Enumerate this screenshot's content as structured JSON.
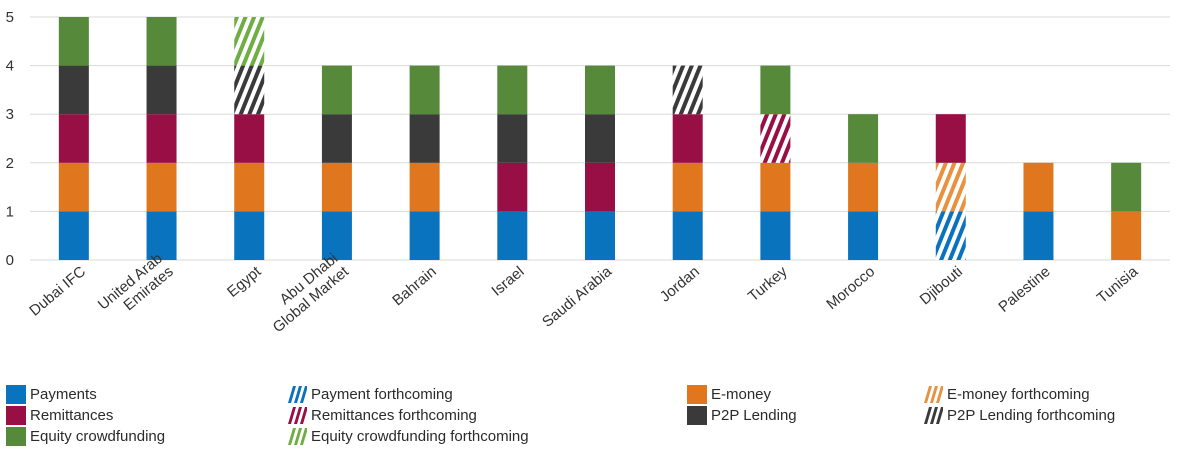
{
  "chart_data": {
    "type": "bar",
    "stacked": true,
    "ylim": [
      0,
      5
    ],
    "yticks": [
      "0",
      "1",
      "2",
      "3",
      "4",
      "5"
    ],
    "grid": true,
    "legend_placement": "bottom",
    "categories": [
      "Dubai IFC",
      "United Arab Emirates",
      "Egypt",
      "Abu Dhabi Global Market",
      "Bahrain",
      "Israel",
      "Saudi Arabia",
      "Jordan",
      "Turkey",
      "Morocco",
      "Djibouti",
      "Palestine",
      "Tunisia"
    ],
    "category_lines": [
      [
        "Dubai IFC"
      ],
      [
        "United Arab",
        "Emirates"
      ],
      [
        "Egypt"
      ],
      [
        "Abu Dhabi",
        "Global Market"
      ],
      [
        "Bahrain"
      ],
      [
        "Israel"
      ],
      [
        "Saudi Arabia"
      ],
      [
        "Jordan"
      ],
      [
        "Turkey"
      ],
      [
        "Morocco"
      ],
      [
        "Djibouti"
      ],
      [
        "Palestine"
      ],
      [
        "Tunisia"
      ]
    ],
    "series": [
      {
        "name": "Payments",
        "color": "#0a73be",
        "pattern": "solid",
        "values": [
          1,
          1,
          1,
          1,
          1,
          1,
          1,
          1,
          1,
          1,
          0,
          1,
          0
        ]
      },
      {
        "name": "Payment forthcoming",
        "color": "#0a73be",
        "pattern": "hatched",
        "values": [
          0,
          0,
          0,
          0,
          0,
          0,
          0,
          0,
          0,
          0,
          1,
          0,
          0
        ]
      },
      {
        "name": "E-money",
        "color": "#e0771f",
        "pattern": "solid",
        "values": [
          1,
          1,
          1,
          1,
          1,
          0,
          0,
          1,
          1,
          1,
          0,
          1,
          1
        ]
      },
      {
        "name": "E-money forthcoming",
        "color": "#e8913f",
        "pattern": "hatched",
        "values": [
          0,
          0,
          0,
          0,
          0,
          0,
          0,
          0,
          0,
          0,
          1,
          0,
          0
        ]
      },
      {
        "name": "Remittances",
        "color": "#980f45",
        "pattern": "solid",
        "values": [
          1,
          1,
          1,
          0,
          0,
          1,
          1,
          1,
          0,
          0,
          1,
          0,
          0
        ]
      },
      {
        "name": "Remittances forthcoming",
        "color": "#980f45",
        "pattern": "hatched",
        "values": [
          0,
          0,
          0,
          0,
          0,
          0,
          0,
          0,
          1,
          0,
          0,
          0,
          0
        ]
      },
      {
        "name": "P2P Lending",
        "color": "#3a3a3a",
        "pattern": "solid",
        "values": [
          1,
          1,
          0,
          1,
          1,
          1,
          1,
          0,
          0,
          0,
          0,
          0,
          0
        ]
      },
      {
        "name": "P2P Lending forthcoming",
        "color": "#3a3a3a",
        "pattern": "hatched",
        "values": [
          0,
          0,
          1,
          0,
          0,
          0,
          0,
          1,
          0,
          0,
          0,
          0,
          0
        ]
      },
      {
        "name": "Equity crowdfunding",
        "color": "#56893a",
        "pattern": "solid",
        "values": [
          1,
          1,
          0,
          1,
          1,
          1,
          1,
          0,
          1,
          1,
          0,
          0,
          1
        ]
      },
      {
        "name": "Equity crowdfunding forthcoming",
        "color": "#6fae44",
        "pattern": "hatched",
        "values": [
          0,
          0,
          1,
          0,
          0,
          0,
          0,
          0,
          0,
          0,
          0,
          0,
          0
        ]
      }
    ]
  },
  "legend": [
    {
      "label": "Payments",
      "color": "#0a73be",
      "pattern": "solid"
    },
    {
      "label": "Payment forthcoming",
      "color": "#0a73be",
      "pattern": "hatched"
    },
    {
      "label": "E-money",
      "color": "#e0771f",
      "pattern": "solid"
    },
    {
      "label": "E-money forthcoming",
      "color": "#e8913f",
      "pattern": "hatched"
    },
    {
      "label": "Remittances",
      "color": "#980f45",
      "pattern": "solid"
    },
    {
      "label": "Remittances forthcoming",
      "color": "#980f45",
      "pattern": "hatched"
    },
    {
      "label": "P2P Lending",
      "color": "#3a3a3a",
      "pattern": "solid"
    },
    {
      "label": "P2P Lending forthcoming",
      "color": "#3a3a3a",
      "pattern": "hatched"
    },
    {
      "label": "Equity crowdfunding",
      "color": "#56893a",
      "pattern": "solid"
    },
    {
      "label": "Equity crowdfunding forthcoming",
      "color": "#6fae44",
      "pattern": "hatched"
    }
  ]
}
